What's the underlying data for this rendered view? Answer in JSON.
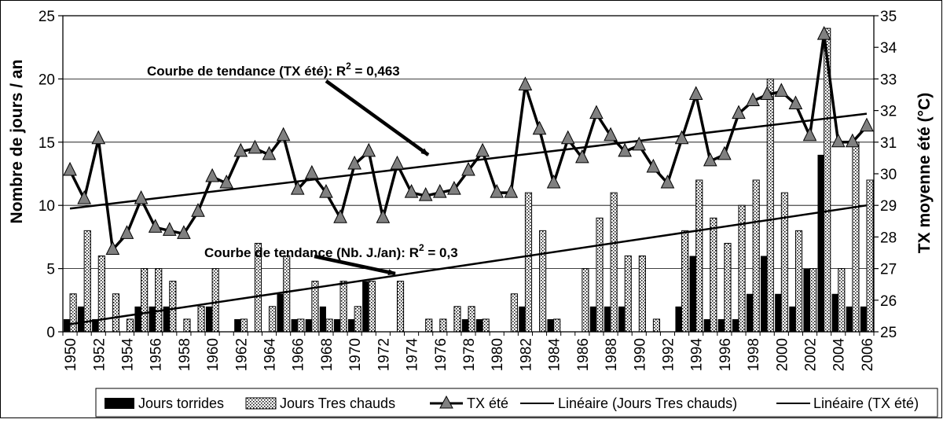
{
  "chart_data": {
    "type": "bar",
    "x": [
      1950,
      1951,
      1952,
      1953,
      1954,
      1955,
      1956,
      1957,
      1958,
      1959,
      1960,
      1961,
      1962,
      1963,
      1964,
      1965,
      1966,
      1967,
      1968,
      1969,
      1970,
      1971,
      1972,
      1973,
      1974,
      1975,
      1976,
      1977,
      1978,
      1979,
      1980,
      1981,
      1982,
      1983,
      1984,
      1985,
      1986,
      1987,
      1988,
      1989,
      1990,
      1991,
      1992,
      1993,
      1994,
      1995,
      1996,
      1997,
      1998,
      1999,
      2000,
      2001,
      2002,
      2003,
      2004,
      2005,
      2006
    ],
    "x_tick_labels": [
      "1950",
      "1952",
      "1954",
      "1956",
      "1958",
      "1960",
      "1962",
      "1964",
      "1966",
      "1968",
      "1970",
      "1972",
      "1974",
      "1976",
      "1978",
      "1980",
      "1982",
      "1984",
      "1986",
      "1988",
      "1990",
      "1992",
      "1994",
      "1996",
      "1998",
      "2000",
      "2002",
      "2004",
      "2006"
    ],
    "ylabel": "Nombre de jours / an",
    "ylabel_right": "TX moyenne été (°C)",
    "ylim": [
      0,
      25
    ],
    "y_ticks": [
      0,
      5,
      10,
      15,
      20,
      25
    ],
    "ylim_right": [
      25,
      35
    ],
    "y_ticks_right": [
      25,
      26,
      27,
      28,
      29,
      30,
      31,
      32,
      33,
      34,
      35
    ],
    "grid": true,
    "series": [
      {
        "name": "Jours torrides",
        "type": "bar",
        "axis": "left",
        "color": "#000000",
        "values": [
          1,
          2,
          1,
          0,
          0,
          2,
          2,
          2,
          0,
          0,
          2,
          0,
          1,
          0,
          0,
          3,
          1,
          1,
          2,
          1,
          1,
          4,
          0,
          0,
          0,
          0,
          0,
          0,
          1,
          1,
          0,
          0,
          2,
          0,
          1,
          0,
          0,
          2,
          2,
          2,
          0,
          0,
          0,
          2,
          6,
          1,
          1,
          1,
          3,
          6,
          3,
          2,
          5,
          14,
          3,
          2,
          2
        ]
      },
      {
        "name": "Jours Tres chauds",
        "type": "bar",
        "axis": "left",
        "pattern": "dotted",
        "values": [
          3,
          8,
          6,
          3,
          1,
          5,
          5,
          4,
          1,
          2,
          5,
          0,
          1,
          7,
          2,
          6,
          1,
          4,
          1,
          4,
          2,
          4,
          0,
          4,
          0,
          1,
          1,
          2,
          2,
          1,
          0,
          3,
          11,
          8,
          1,
          0,
          5,
          9,
          11,
          6,
          6,
          1,
          0,
          8,
          12,
          9,
          7,
          10,
          12,
          20,
          11,
          8,
          5,
          24,
          5,
          15,
          12
        ]
      },
      {
        "name": "TX été",
        "type": "line",
        "axis": "right",
        "marker": "triangle",
        "values": [
          30.1,
          29.2,
          31.1,
          27.6,
          28.1,
          29.2,
          28.3,
          28.2,
          28.1,
          28.8,
          29.9,
          29.7,
          30.7,
          30.8,
          30.6,
          31.2,
          29.5,
          30.0,
          29.4,
          28.6,
          30.3,
          30.7,
          28.6,
          30.3,
          29.4,
          29.3,
          29.4,
          29.5,
          30.1,
          30.7,
          29.4,
          29.4,
          32.8,
          31.4,
          29.7,
          31.1,
          30.5,
          31.9,
          31.2,
          30.7,
          30.9,
          30.2,
          29.7,
          31.1,
          32.5,
          30.4,
          30.6,
          31.9,
          32.3,
          32.5,
          32.6,
          32.2,
          31.2,
          34.4,
          31.0,
          31.0,
          31.5
        ]
      },
      {
        "name": "Linéaire (Jours Tres chauds)",
        "type": "trend",
        "axis": "left",
        "x_range": [
          1950,
          2006
        ],
        "y_range": [
          0.6,
          10.0
        ]
      },
      {
        "name": "Linéaire (TX été)",
        "type": "trend",
        "axis": "right",
        "x_range": [
          1950,
          2006
        ],
        "y_range": [
          28.9,
          31.9
        ]
      }
    ],
    "annotations": [
      {
        "prefix": "Courbe de tendance (TX été): R",
        "sup": "2",
        "suffix": " = 0,463"
      },
      {
        "prefix": "Courbe de tendance (Nb. J./an): R",
        "sup": "2",
        "suffix": " = 0,3"
      }
    ],
    "legend": {
      "position": "bottom",
      "entries": [
        "Jours torrides",
        "Jours Tres chauds",
        "TX été",
        "Linéaire (Jours Tres chauds)",
        "Linéaire (TX été)"
      ]
    }
  }
}
